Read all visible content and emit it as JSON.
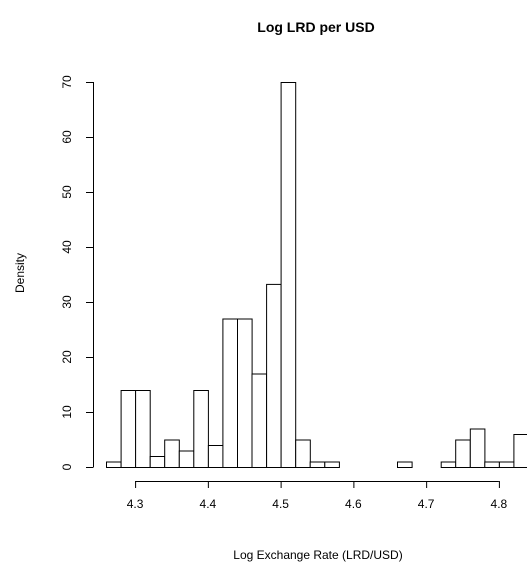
{
  "chart_data": {
    "type": "bar",
    "title": "Log LRD per USD",
    "xlabel": "Log Exchange Rate (LRD/USD)",
    "ylabel": "Density",
    "xlim": [
      4.26,
      4.84
    ],
    "ylim": [
      0,
      70
    ],
    "bin_width": 0.02,
    "x_ticks": [
      4.3,
      4.4,
      4.5,
      4.6,
      4.7,
      4.8
    ],
    "x_tick_labels": [
      "4.3",
      "4.4",
      "4.5",
      "4.6",
      "4.7",
      "4.8"
    ],
    "y_ticks": [
      0,
      10,
      20,
      30,
      40,
      50,
      60,
      70
    ],
    "y_tick_labels": [
      "0",
      "10",
      "20",
      "30",
      "40",
      "50",
      "60",
      "70"
    ],
    "grid": false,
    "bins": [
      {
        "x0": 4.26,
        "x1": 4.28,
        "density": 1
      },
      {
        "x0": 4.28,
        "x1": 4.3,
        "density": 14
      },
      {
        "x0": 4.3,
        "x1": 4.32,
        "density": 14
      },
      {
        "x0": 4.32,
        "x1": 4.34,
        "density": 2
      },
      {
        "x0": 4.34,
        "x1": 4.36,
        "density": 5
      },
      {
        "x0": 4.36,
        "x1": 4.38,
        "density": 3
      },
      {
        "x0": 4.38,
        "x1": 4.4,
        "density": 14
      },
      {
        "x0": 4.4,
        "x1": 4.42,
        "density": 4
      },
      {
        "x0": 4.42,
        "x1": 4.44,
        "density": 27
      },
      {
        "x0": 4.44,
        "x1": 4.46,
        "density": 27
      },
      {
        "x0": 4.46,
        "x1": 4.48,
        "density": 17
      },
      {
        "x0": 4.48,
        "x1": 4.5,
        "density": 33.3
      },
      {
        "x0": 4.5,
        "x1": 4.52,
        "density": 70
      },
      {
        "x0": 4.52,
        "x1": 4.54,
        "density": 5
      },
      {
        "x0": 4.54,
        "x1": 4.56,
        "density": 1
      },
      {
        "x0": 4.56,
        "x1": 4.58,
        "density": 1
      },
      {
        "x0": 4.58,
        "x1": 4.6,
        "density": 0
      },
      {
        "x0": 4.6,
        "x1": 4.62,
        "density": 0
      },
      {
        "x0": 4.62,
        "x1": 4.64,
        "density": 0
      },
      {
        "x0": 4.64,
        "x1": 4.66,
        "density": 0
      },
      {
        "x0": 4.66,
        "x1": 4.68,
        "density": 1
      },
      {
        "x0": 4.68,
        "x1": 4.7,
        "density": 0
      },
      {
        "x0": 4.7,
        "x1": 4.72,
        "density": 0
      },
      {
        "x0": 4.72,
        "x1": 4.74,
        "density": 1
      },
      {
        "x0": 4.74,
        "x1": 4.76,
        "density": 5
      },
      {
        "x0": 4.76,
        "x1": 4.78,
        "density": 7
      },
      {
        "x0": 4.78,
        "x1": 4.8,
        "density": 1
      },
      {
        "x0": 4.8,
        "x1": 4.82,
        "density": 1
      },
      {
        "x0": 4.82,
        "x1": 4.84,
        "density": 6
      }
    ]
  }
}
